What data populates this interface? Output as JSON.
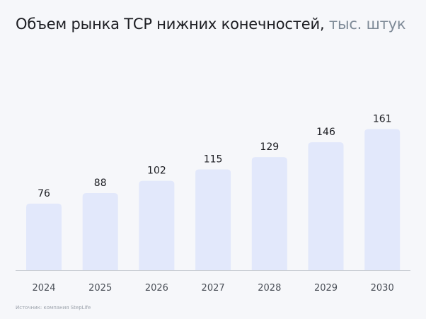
{
  "title": {
    "main": "Объем рынка ТСР нижних конечностей,",
    "unit": "тыс. штук"
  },
  "source": "Источник: компания StepLife",
  "colors": {
    "bar": "#e2e8fb",
    "axis": "#c9cdd3",
    "value_text": "#1c1d22",
    "tick_text": "#4a4f57"
  },
  "chart_data": {
    "type": "bar",
    "title": "Объем рынка ТСР нижних конечностей, тыс. штук",
    "categories": [
      "2024",
      "2025",
      "2026",
      "2027",
      "2028",
      "2029",
      "2030"
    ],
    "values": [
      76,
      88,
      102,
      115,
      129,
      146,
      161
    ],
    "xlabel": "",
    "ylabel": "",
    "ylim": [
      0,
      200
    ],
    "grid": false,
    "legend": "none",
    "data_labels": true
  }
}
